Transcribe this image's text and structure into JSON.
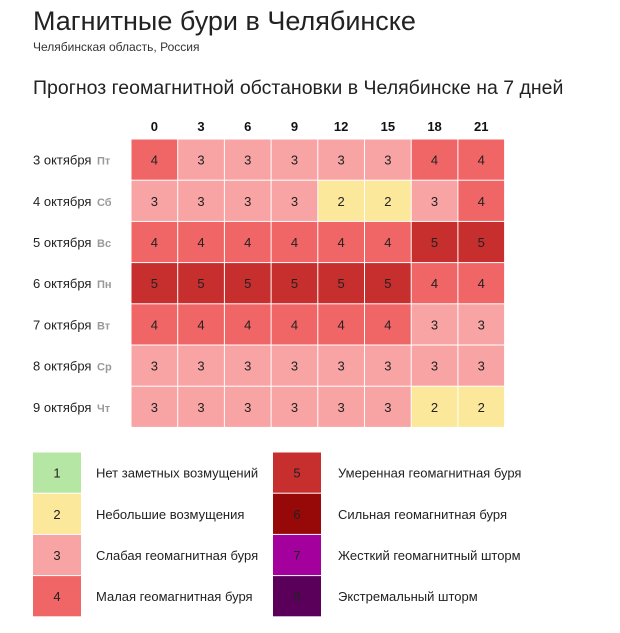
{
  "header": {
    "title": "Магнитные бури в Челябинске",
    "subtitle": "Челябинская область, Россия",
    "forecast_heading": "Прогноз геомагнитной обстановки в Челябинске на 7 дней"
  },
  "chart_data": {
    "type": "heatmap",
    "x": [
      "0",
      "3",
      "6",
      "9",
      "12",
      "15",
      "18",
      "21"
    ],
    "rows": [
      {
        "date": "3 октября",
        "weekday": "Пт",
        "values": [
          4,
          3,
          3,
          3,
          3,
          3,
          4,
          4
        ]
      },
      {
        "date": "4 октября",
        "weekday": "Сб",
        "values": [
          3,
          3,
          3,
          3,
          2,
          2,
          3,
          4
        ]
      },
      {
        "date": "5 октября",
        "weekday": "Вс",
        "values": [
          4,
          4,
          4,
          4,
          4,
          4,
          5,
          5
        ]
      },
      {
        "date": "6 октября",
        "weekday": "Пн",
        "values": [
          5,
          5,
          5,
          5,
          5,
          5,
          4,
          4
        ]
      },
      {
        "date": "7 октября",
        "weekday": "Вт",
        "values": [
          4,
          4,
          4,
          4,
          4,
          4,
          3,
          3
        ]
      },
      {
        "date": "8 октября",
        "weekday": "Ср",
        "values": [
          3,
          3,
          3,
          3,
          3,
          3,
          3,
          3
        ]
      },
      {
        "date": "9 октября",
        "weekday": "Чт",
        "values": [
          3,
          3,
          3,
          3,
          3,
          3,
          2,
          2
        ]
      }
    ],
    "scale": [
      {
        "value": 1,
        "label": "Нет заметных возмущений",
        "color": "#b5e6a4"
      },
      {
        "value": 2,
        "label": "Небольшие возмущения",
        "color": "#fbe89a"
      },
      {
        "value": 3,
        "label": "Слабая геомагнитная буря",
        "color": "#f9a4a4"
      },
      {
        "value": 4,
        "label": "Малая геомагнитная буря",
        "color": "#f06565"
      },
      {
        "value": 5,
        "label": "Умеренная геомагнитная буря",
        "color": "#c72e2e"
      },
      {
        "value": 6,
        "label": "Сильная геомагнитная буря",
        "color": "#970808"
      },
      {
        "value": 7,
        "label": "Жесткий геомагнитный шторм",
        "color": "#a3009e"
      },
      {
        "value": 8,
        "label": "Экстремальный шторм",
        "color": "#5a005a"
      }
    ]
  }
}
